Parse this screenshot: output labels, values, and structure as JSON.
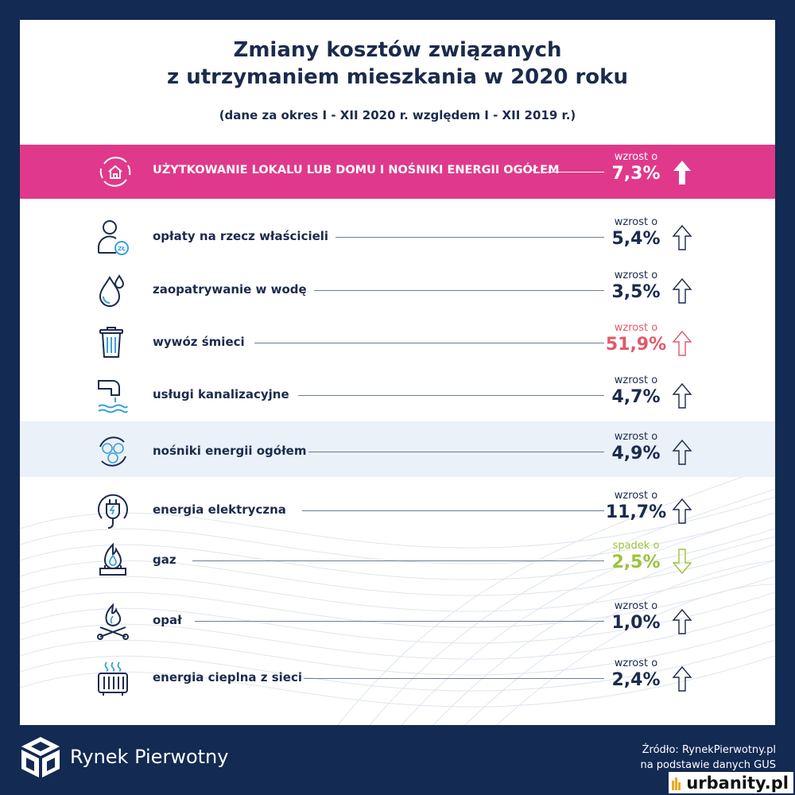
{
  "title": {
    "line1": "Zmiany kosztów związanych",
    "line2": "z utrzymaniem mieszkania w 2020 roku",
    "subtitle": "(dane za okres I - XII 2020 r. względem I - XII 2019 r.)"
  },
  "rows": [
    {
      "label": "UŻYTKOWANIE LOKALU LUB DOMU I NOŚNIKI ENERGII OGÓŁEM",
      "direction": "wzrost o",
      "value": "7,3%",
      "icon": "home-cycle-icon",
      "trend": "up"
    },
    {
      "label": "opłaty na rzecz właścicieli",
      "direction": "wzrost o",
      "value": "5,4%",
      "icon": "owner-zl-icon",
      "trend": "up"
    },
    {
      "label": "zaopatrywanie w wodę",
      "direction": "wzrost o",
      "value": "3,5%",
      "icon": "water-drop-icon",
      "trend": "up"
    },
    {
      "label": "wywóz śmieci",
      "direction": "wzrost o",
      "value": "51,9%",
      "icon": "trash-can-icon",
      "trend": "up"
    },
    {
      "label": "usługi kanalizacyjne",
      "direction": "wzrost o",
      "value": "4,7%",
      "icon": "sewer-pipe-icon",
      "trend": "up"
    },
    {
      "label": "nośniki energii ogółem",
      "direction": "wzrost o",
      "value": "4,9%",
      "icon": "energy-carriers-icon",
      "trend": "up"
    },
    {
      "label": "energia elektryczna",
      "direction": "wzrost o",
      "value": "11,7%",
      "icon": "electric-plug-icon",
      "trend": "up"
    },
    {
      "label": "gaz",
      "direction": "spadek o",
      "value": "2,5%",
      "icon": "gas-flame-icon",
      "trend": "down"
    },
    {
      "label": "opał",
      "direction": "wzrost o",
      "value": "1,0%",
      "icon": "firewood-icon",
      "trend": "up"
    },
    {
      "label": "energia cieplna z sieci",
      "direction": "wzrost o",
      "value": "2,4%",
      "icon": "radiator-icon",
      "trend": "up"
    }
  ],
  "colors": {
    "navy": "#132a52",
    "text": "#1b2b4d",
    "highlight": "#e0398b",
    "increase_strong": "#e05a6a",
    "decrease": "#9cc33b",
    "energy_band": "#eaf1f8"
  },
  "footer": {
    "brand": "Rynek Pierwotny",
    "source_line1": "Źródło: RynekPierwotny.pl",
    "source_line2": "na podstawie danych GUS",
    "watermark": "urbanity.pl"
  }
}
